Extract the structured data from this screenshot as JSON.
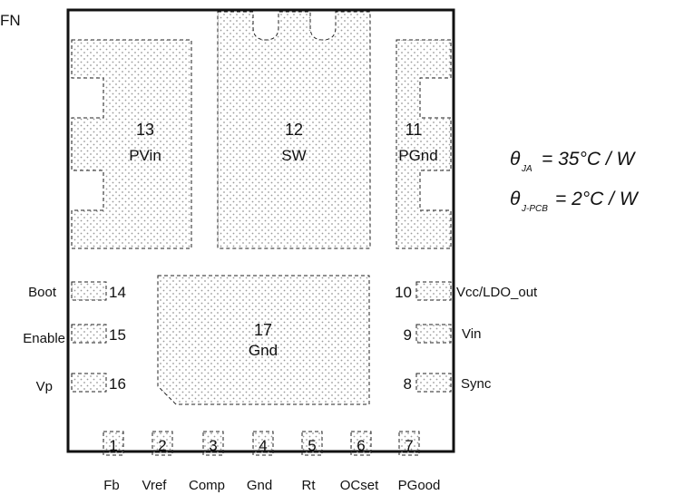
{
  "package_label": "FN",
  "pads": {
    "pvin": {
      "number": "13",
      "name": "PVin"
    },
    "sw": {
      "number": "12",
      "name": "SW"
    },
    "pgnd": {
      "number": "11",
      "name": "PGnd"
    },
    "gnd": {
      "number": "17",
      "name": "Gnd"
    }
  },
  "left_pins": [
    {
      "name": "Boot",
      "number": "14"
    },
    {
      "name": "Enable",
      "number": "15"
    },
    {
      "name": "Vp",
      "number": "16"
    }
  ],
  "right_pins": [
    {
      "name": "Vcc/LDO_out",
      "number": "10"
    },
    {
      "name": "Vin",
      "number": "9"
    },
    {
      "name": "Sync",
      "number": "8"
    }
  ],
  "bottom_pins": [
    {
      "name": "Fb",
      "number": "1"
    },
    {
      "name": "Vref",
      "number": "2"
    },
    {
      "name": "Comp",
      "number": "3"
    },
    {
      "name": "Gnd",
      "number": "4"
    },
    {
      "name": "Rt",
      "number": "5"
    },
    {
      "name": "OCset",
      "number": "6"
    },
    {
      "name": "PGood",
      "number": "7"
    }
  ],
  "thermal": {
    "ja": {
      "symbol": "θ",
      "subscript": "JA",
      "value": "= 35°C / W"
    },
    "jpcb": {
      "symbol": "θ",
      "subscript": "J-PCB",
      "value": "= 2°C / W"
    }
  },
  "colors": {
    "outline": "#111111",
    "dots": "#9a9a9a",
    "background": "#ffffff"
  }
}
